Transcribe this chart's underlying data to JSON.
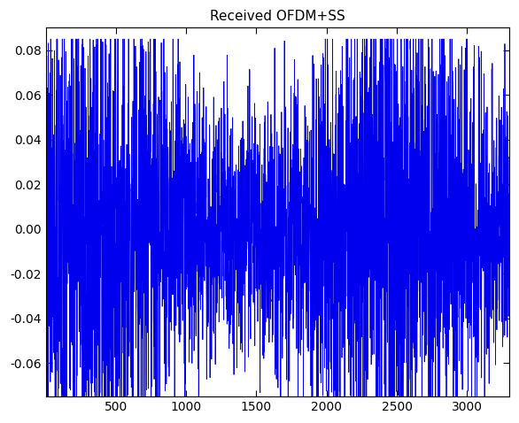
{
  "title": "Received OFDM+SS",
  "xlim": [
    0,
    3300
  ],
  "ylim": [
    -0.075,
    0.09
  ],
  "yticks": [
    -0.06,
    -0.04,
    -0.02,
    0,
    0.02,
    0.04,
    0.06,
    0.08
  ],
  "xticks": [
    500,
    1000,
    1500,
    2000,
    2500,
    3000
  ],
  "line_color": "#0000EE",
  "n_samples": 3300,
  "seed": 7,
  "background_color": "#ffffff",
  "title_fontsize": 11,
  "figsize": [
    5.86,
    4.78
  ],
  "dpi": 100
}
